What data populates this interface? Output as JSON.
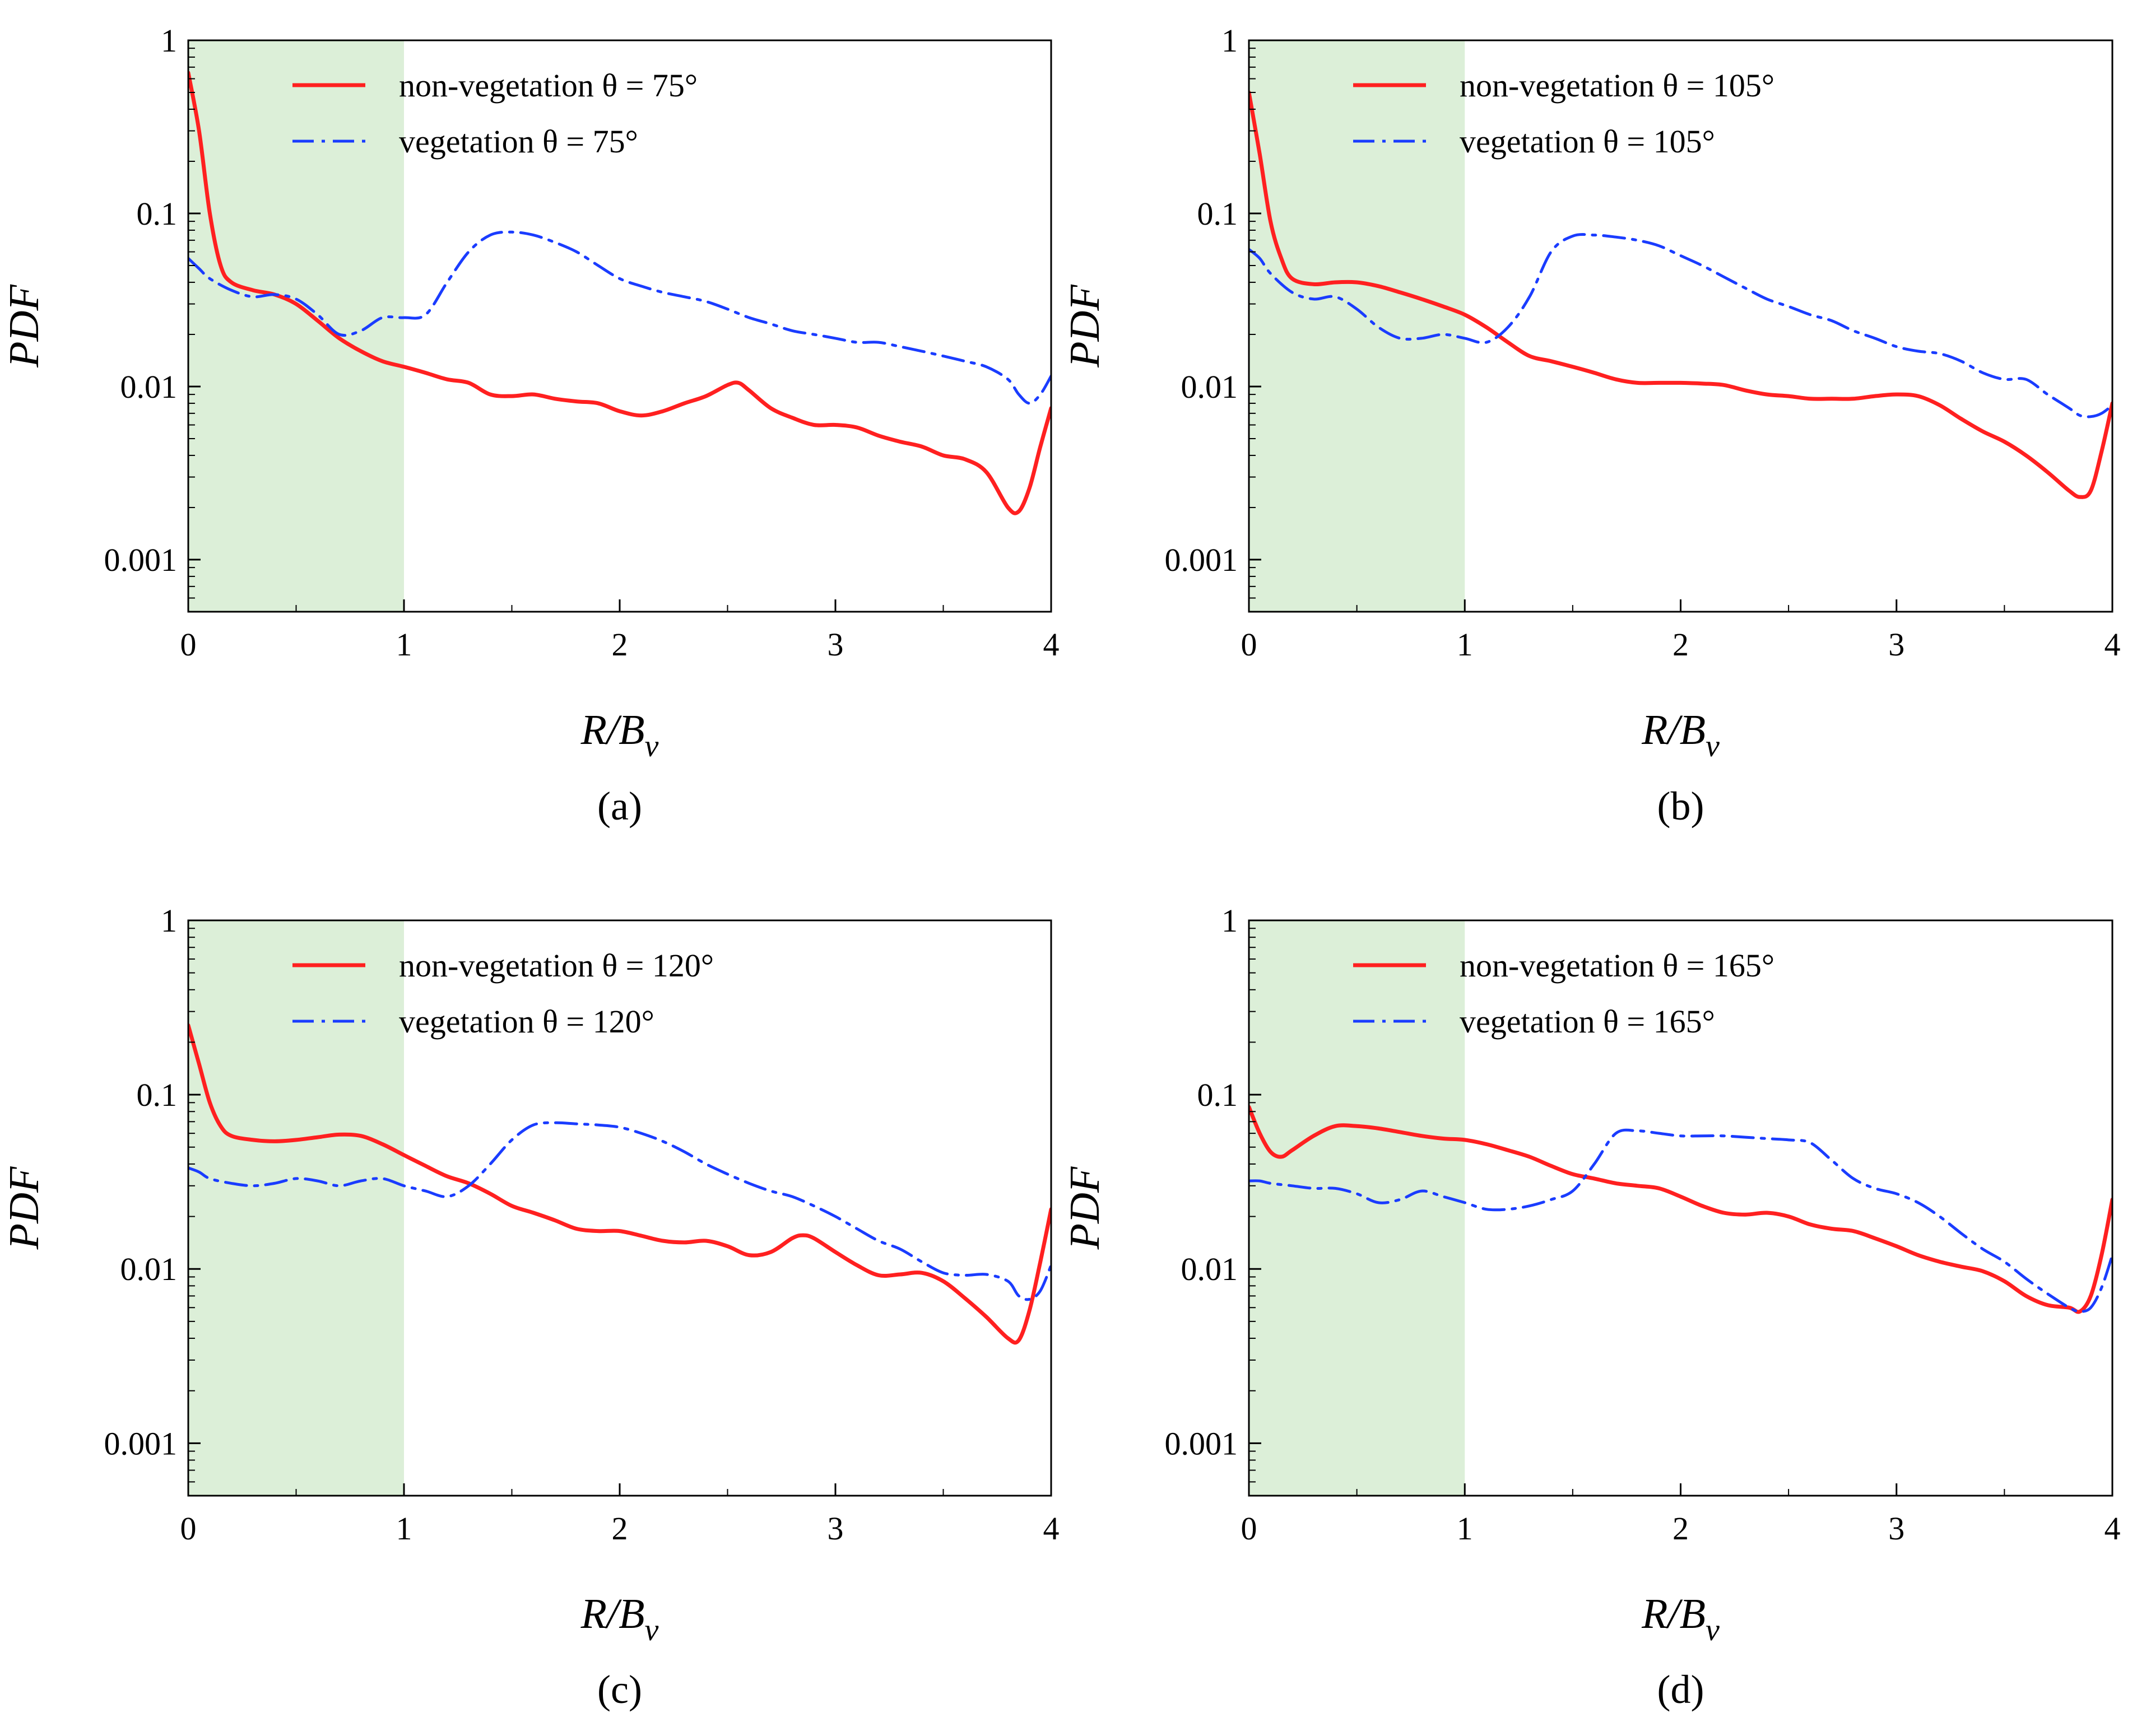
{
  "chart_data": [
    {
      "type": "line",
      "panel_label": "(a)",
      "xlabel": "R/B",
      "xlabel_subscript": "v",
      "ylabel": "PDF",
      "xlim": [
        0,
        4
      ],
      "ylim": [
        0.0005,
        1
      ],
      "yscale": "log",
      "xticks": [
        "0",
        "1",
        "2",
        "3",
        "4"
      ],
      "yticks": [
        "0.001",
        "0.01",
        "0.1",
        "1"
      ],
      "shaded_region": {
        "x": [
          0,
          1
        ],
        "color": "#dcefd8"
      },
      "legend_position": "top-center",
      "series": [
        {
          "name": "non-vegetation θ = 75°",
          "color": "#ff2020",
          "style": "solid",
          "x": [
            0,
            0.05,
            0.1,
            0.15,
            0.2,
            0.3,
            0.4,
            0.5,
            0.6,
            0.7,
            0.8,
            0.9,
            1.0,
            1.1,
            1.2,
            1.3,
            1.4,
            1.5,
            1.6,
            1.7,
            1.8,
            1.9,
            2.0,
            2.1,
            2.2,
            2.3,
            2.4,
            2.5,
            2.55,
            2.6,
            2.7,
            2.8,
            2.9,
            3.0,
            3.1,
            3.2,
            3.3,
            3.4,
            3.5,
            3.6,
            3.7,
            3.8,
            3.85,
            3.9,
            3.95,
            4.0
          ],
          "y": [
            0.65,
            0.3,
            0.1,
            0.05,
            0.04,
            0.036,
            0.034,
            0.03,
            0.024,
            0.019,
            0.016,
            0.014,
            0.013,
            0.012,
            0.011,
            0.0105,
            0.009,
            0.0088,
            0.009,
            0.0085,
            0.0082,
            0.008,
            0.0072,
            0.0068,
            0.0072,
            0.008,
            0.0088,
            0.0102,
            0.0105,
            0.0095,
            0.0075,
            0.0066,
            0.006,
            0.006,
            0.0058,
            0.0052,
            0.0048,
            0.0045,
            0.004,
            0.0038,
            0.0032,
            0.002,
            0.0019,
            0.0026,
            0.0045,
            0.0075
          ]
        },
        {
          "name": "vegetation θ = 75°",
          "color": "#1a3cff",
          "style": "dashdot",
          "x": [
            0,
            0.05,
            0.1,
            0.2,
            0.3,
            0.4,
            0.5,
            0.6,
            0.7,
            0.8,
            0.9,
            1.0,
            1.1,
            1.2,
            1.3,
            1.4,
            1.5,
            1.6,
            1.7,
            1.8,
            1.9,
            2.0,
            2.1,
            2.2,
            2.3,
            2.4,
            2.5,
            2.6,
            2.7,
            2.8,
            2.9,
            3.0,
            3.1,
            3.2,
            3.3,
            3.4,
            3.5,
            3.6,
            3.7,
            3.8,
            3.85,
            3.9,
            3.95,
            4.0
          ],
          "y": [
            0.055,
            0.048,
            0.042,
            0.036,
            0.033,
            0.034,
            0.032,
            0.026,
            0.02,
            0.021,
            0.025,
            0.025,
            0.026,
            0.04,
            0.06,
            0.075,
            0.078,
            0.075,
            0.068,
            0.06,
            0.05,
            0.042,
            0.038,
            0.035,
            0.033,
            0.031,
            0.028,
            0.025,
            0.023,
            0.021,
            0.02,
            0.019,
            0.018,
            0.018,
            0.017,
            0.016,
            0.015,
            0.014,
            0.013,
            0.011,
            0.009,
            0.008,
            0.009,
            0.0115
          ]
        }
      ]
    },
    {
      "type": "line",
      "panel_label": "(b)",
      "xlabel": "R/B",
      "xlabel_subscript": "v",
      "ylabel": "PDF",
      "xlim": [
        0,
        4
      ],
      "ylim": [
        0.0005,
        1
      ],
      "yscale": "log",
      "xticks": [
        "0",
        "1",
        "2",
        "3",
        "4"
      ],
      "yticks": [
        "0.001",
        "0.01",
        "0.1",
        "1"
      ],
      "shaded_region": {
        "x": [
          0,
          1
        ],
        "color": "#dcefd8"
      },
      "legend_position": "top-center",
      "series": [
        {
          "name": "non-vegetation θ = 105°",
          "color": "#ff2020",
          "style": "solid",
          "x": [
            0,
            0.05,
            0.1,
            0.15,
            0.2,
            0.3,
            0.4,
            0.5,
            0.6,
            0.7,
            0.8,
            0.9,
            1.0,
            1.1,
            1.2,
            1.3,
            1.4,
            1.5,
            1.6,
            1.7,
            1.8,
            1.9,
            2.0,
            2.1,
            2.2,
            2.3,
            2.4,
            2.5,
            2.6,
            2.7,
            2.8,
            2.9,
            3.0,
            3.1,
            3.2,
            3.3,
            3.4,
            3.5,
            3.6,
            3.7,
            3.8,
            3.85,
            3.9,
            3.95,
            4.0
          ],
          "y": [
            0.5,
            0.22,
            0.09,
            0.055,
            0.042,
            0.039,
            0.04,
            0.04,
            0.038,
            0.035,
            0.032,
            0.029,
            0.026,
            0.022,
            0.018,
            0.015,
            0.014,
            0.013,
            0.012,
            0.011,
            0.0105,
            0.0105,
            0.0105,
            0.0104,
            0.0102,
            0.0095,
            0.009,
            0.0088,
            0.0085,
            0.0085,
            0.0085,
            0.0088,
            0.009,
            0.0088,
            0.0078,
            0.0065,
            0.0055,
            0.0048,
            0.004,
            0.0032,
            0.0025,
            0.0023,
            0.0025,
            0.0042,
            0.008
          ]
        },
        {
          "name": "vegetation θ = 105°",
          "color": "#1a3cff",
          "style": "dashdot",
          "x": [
            0,
            0.05,
            0.1,
            0.2,
            0.3,
            0.4,
            0.5,
            0.6,
            0.7,
            0.8,
            0.9,
            1.0,
            1.1,
            1.2,
            1.3,
            1.4,
            1.5,
            1.6,
            1.7,
            1.8,
            1.9,
            2.0,
            2.1,
            2.2,
            2.3,
            2.4,
            2.5,
            2.6,
            2.7,
            2.8,
            2.9,
            3.0,
            3.1,
            3.2,
            3.3,
            3.4,
            3.5,
            3.6,
            3.7,
            3.8,
            3.85,
            3.9,
            3.95,
            4.0
          ],
          "y": [
            0.062,
            0.055,
            0.045,
            0.035,
            0.032,
            0.033,
            0.028,
            0.022,
            0.019,
            0.019,
            0.02,
            0.019,
            0.018,
            0.022,
            0.033,
            0.06,
            0.074,
            0.075,
            0.073,
            0.07,
            0.065,
            0.057,
            0.05,
            0.043,
            0.037,
            0.032,
            0.029,
            0.026,
            0.024,
            0.021,
            0.019,
            0.017,
            0.016,
            0.0155,
            0.014,
            0.012,
            0.011,
            0.011,
            0.009,
            0.0075,
            0.0068,
            0.0067,
            0.007,
            0.0078
          ]
        }
      ]
    },
    {
      "type": "line",
      "panel_label": "(c)",
      "xlabel": "R/B",
      "xlabel_subscript": "v",
      "ylabel": "PDF",
      "xlim": [
        0,
        4
      ],
      "ylim": [
        0.0005,
        1
      ],
      "yscale": "log",
      "xticks": [
        "0",
        "1",
        "2",
        "3",
        "4"
      ],
      "yticks": [
        "0.001",
        "0.01",
        "0.1",
        "1"
      ],
      "shaded_region": {
        "x": [
          0,
          1
        ],
        "color": "#dcefd8"
      },
      "legend_position": "top-center",
      "series": [
        {
          "name": "non-vegetation θ = 120°",
          "color": "#ff2020",
          "style": "solid",
          "x": [
            0,
            0.05,
            0.1,
            0.15,
            0.2,
            0.3,
            0.4,
            0.5,
            0.6,
            0.7,
            0.8,
            0.9,
            1.0,
            1.1,
            1.2,
            1.3,
            1.4,
            1.5,
            1.6,
            1.7,
            1.8,
            1.9,
            2.0,
            2.1,
            2.2,
            2.3,
            2.4,
            2.5,
            2.6,
            2.7,
            2.8,
            2.85,
            2.9,
            3.0,
            3.1,
            3.2,
            3.3,
            3.4,
            3.5,
            3.6,
            3.7,
            3.8,
            3.85,
            3.9,
            3.95,
            4.0
          ],
          "y": [
            0.25,
            0.15,
            0.09,
            0.066,
            0.058,
            0.055,
            0.054,
            0.055,
            0.057,
            0.059,
            0.058,
            0.052,
            0.045,
            0.039,
            0.034,
            0.031,
            0.027,
            0.023,
            0.021,
            0.019,
            0.017,
            0.0165,
            0.0165,
            0.0155,
            0.0145,
            0.0142,
            0.0145,
            0.0135,
            0.012,
            0.0125,
            0.015,
            0.0156,
            0.015,
            0.0125,
            0.0105,
            0.0092,
            0.0093,
            0.0095,
            0.0085,
            0.0068,
            0.0053,
            0.004,
            0.0039,
            0.0058,
            0.011,
            0.022
          ]
        },
        {
          "name": "vegetation θ = 120°",
          "color": "#1a3cff",
          "style": "dashdot",
          "x": [
            0,
            0.05,
            0.1,
            0.2,
            0.3,
            0.4,
            0.5,
            0.6,
            0.7,
            0.8,
            0.9,
            1.0,
            1.1,
            1.2,
            1.3,
            1.4,
            1.5,
            1.6,
            1.7,
            1.8,
            1.9,
            2.0,
            2.1,
            2.2,
            2.3,
            2.4,
            2.5,
            2.6,
            2.7,
            2.8,
            2.9,
            3.0,
            3.1,
            3.2,
            3.3,
            3.4,
            3.5,
            3.6,
            3.7,
            3.8,
            3.85,
            3.9,
            3.95,
            4.0
          ],
          "y": [
            0.038,
            0.036,
            0.033,
            0.031,
            0.03,
            0.031,
            0.033,
            0.032,
            0.03,
            0.032,
            0.033,
            0.03,
            0.028,
            0.026,
            0.03,
            0.04,
            0.055,
            0.067,
            0.069,
            0.068,
            0.067,
            0.065,
            0.06,
            0.054,
            0.047,
            0.04,
            0.035,
            0.031,
            0.028,
            0.026,
            0.023,
            0.02,
            0.017,
            0.0145,
            0.013,
            0.011,
            0.0095,
            0.0092,
            0.0093,
            0.0085,
            0.007,
            0.0067,
            0.0075,
            0.0105
          ]
        }
      ]
    },
    {
      "type": "line",
      "panel_label": "(d)",
      "xlabel": "R/B",
      "xlabel_subscript": "v",
      "ylabel": "PDF",
      "xlim": [
        0,
        4
      ],
      "ylim": [
        0.0005,
        1
      ],
      "yscale": "log",
      "xticks": [
        "0",
        "1",
        "2",
        "3",
        "4"
      ],
      "yticks": [
        "0.001",
        "0.01",
        "0.1",
        "1"
      ],
      "shaded_region": {
        "x": [
          0,
          1
        ],
        "color": "#dcefd8"
      },
      "legend_position": "top-center",
      "series": [
        {
          "name": "non-vegetation θ = 165°",
          "color": "#ff2020",
          "style": "solid",
          "x": [
            0,
            0.05,
            0.1,
            0.15,
            0.2,
            0.3,
            0.4,
            0.5,
            0.6,
            0.7,
            0.8,
            0.9,
            1.0,
            1.1,
            1.2,
            1.3,
            1.4,
            1.5,
            1.6,
            1.7,
            1.8,
            1.9,
            2.0,
            2.1,
            2.2,
            2.3,
            2.4,
            2.5,
            2.6,
            2.7,
            2.8,
            2.9,
            3.0,
            3.1,
            3.2,
            3.3,
            3.4,
            3.5,
            3.6,
            3.7,
            3.8,
            3.85,
            3.9,
            3.95,
            4.0
          ],
          "y": [
            0.085,
            0.06,
            0.047,
            0.044,
            0.048,
            0.058,
            0.066,
            0.066,
            0.064,
            0.061,
            0.058,
            0.056,
            0.055,
            0.052,
            0.048,
            0.044,
            0.039,
            0.035,
            0.033,
            0.031,
            0.03,
            0.029,
            0.026,
            0.023,
            0.021,
            0.0205,
            0.021,
            0.02,
            0.018,
            0.017,
            0.0165,
            0.015,
            0.0135,
            0.012,
            0.011,
            0.0103,
            0.0097,
            0.0085,
            0.007,
            0.0062,
            0.006,
            0.0057,
            0.007,
            0.012,
            0.025
          ]
        },
        {
          "name": "vegetation θ = 165°",
          "color": "#1a3cff",
          "style": "dashdot",
          "x": [
            0,
            0.05,
            0.1,
            0.2,
            0.3,
            0.4,
            0.5,
            0.6,
            0.7,
            0.8,
            0.9,
            1.0,
            1.1,
            1.2,
            1.3,
            1.4,
            1.5,
            1.6,
            1.7,
            1.8,
            1.9,
            2.0,
            2.1,
            2.2,
            2.3,
            2.4,
            2.5,
            2.6,
            2.7,
            2.8,
            2.9,
            3.0,
            3.1,
            3.2,
            3.3,
            3.4,
            3.5,
            3.6,
            3.7,
            3.8,
            3.85,
            3.9,
            3.95,
            4.0
          ],
          "y": [
            0.032,
            0.032,
            0.031,
            0.03,
            0.029,
            0.029,
            0.027,
            0.024,
            0.025,
            0.028,
            0.026,
            0.024,
            0.022,
            0.022,
            0.023,
            0.025,
            0.028,
            0.04,
            0.06,
            0.062,
            0.06,
            0.058,
            0.058,
            0.058,
            0.057,
            0.056,
            0.055,
            0.053,
            0.042,
            0.033,
            0.029,
            0.027,
            0.024,
            0.02,
            0.016,
            0.013,
            0.011,
            0.0088,
            0.0072,
            0.006,
            0.0057,
            0.006,
            0.0078,
            0.012
          ]
        }
      ]
    }
  ]
}
